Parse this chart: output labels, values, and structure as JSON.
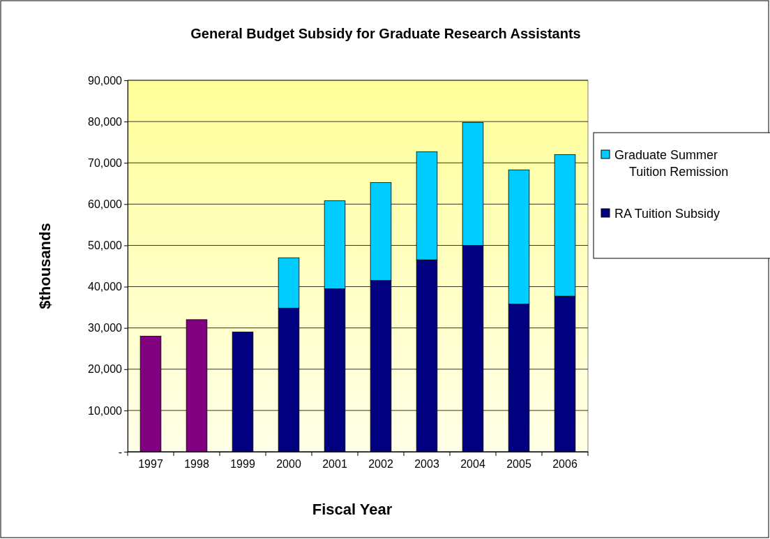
{
  "chart_data": {
    "type": "bar",
    "title": "General Budget Subsidy for Graduate Research Assistants",
    "xlabel": "Fiscal Year",
    "ylabel": "$thousands",
    "categories": [
      "1997",
      "1998",
      "1999",
      "2000",
      "2001",
      "2002",
      "2003",
      "2004",
      "2005",
      "2006"
    ],
    "stacked": true,
    "series": [
      {
        "name": "RA Tuition Subsidy",
        "color": "#000080",
        "colors": [
          "#800080",
          "#800080",
          "#000080",
          "#000080",
          "#000080",
          "#000080",
          "#000080",
          "#000080",
          "#000080",
          "#000080"
        ],
        "values": [
          28000,
          32000,
          29000,
          34800,
          39500,
          41500,
          46500,
          50000,
          35800,
          37700
        ]
      },
      {
        "name": "Graduate Summer Tuition Remission",
        "color": "#00ccff",
        "values": [
          null,
          null,
          null,
          12200,
          21300,
          23700,
          26200,
          29800,
          32500,
          34300
        ]
      }
    ],
    "ylim": [
      0,
      90000
    ],
    "yticks": [
      {
        "value": 0,
        "label": "-"
      },
      {
        "value": 10000,
        "label": "10,000"
      },
      {
        "value": 20000,
        "label": "20,000"
      },
      {
        "value": 30000,
        "label": "30,000"
      },
      {
        "value": 40000,
        "label": "40,000"
      },
      {
        "value": 50000,
        "label": "50,000"
      },
      {
        "value": 60000,
        "label": "60,000"
      },
      {
        "value": 70000,
        "label": "70,000"
      },
      {
        "value": 80000,
        "label": "80,000"
      },
      {
        "value": 90000,
        "label": "90,000"
      }
    ],
    "grid": "y",
    "legend": "right"
  }
}
